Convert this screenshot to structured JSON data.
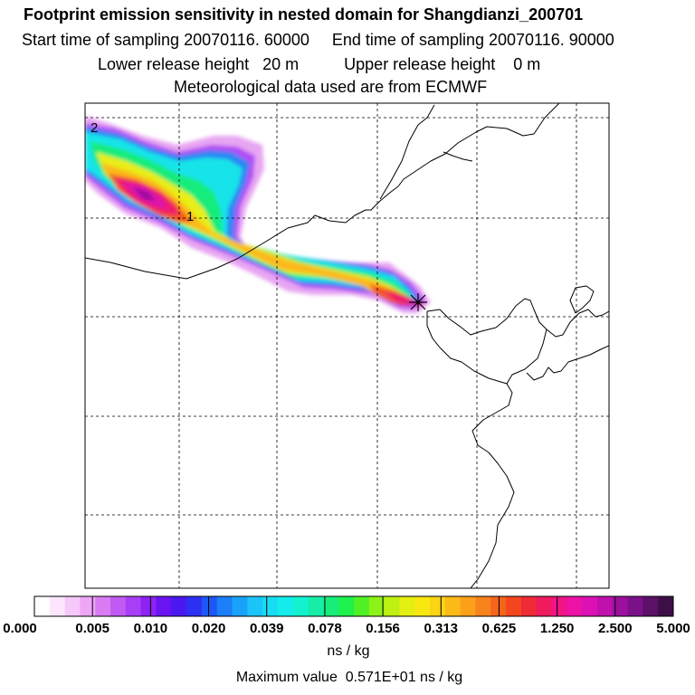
{
  "header": {
    "title": "Footprint emission sensitivity in nested domain for Shangdianzi_200701",
    "start_label": "Start time of sampling 20070116. 60000",
    "end_label": "End time of sampling 20070116. 90000",
    "lower_release_label": "Lower release height   20 m",
    "upper_release_label": "Upper release height    0 m",
    "met_label": "Meteorological data used are from ECMWF"
  },
  "map": {
    "plume_labels": [
      "2",
      "1"
    ],
    "receptor_marker": "star"
  },
  "colorbar": {
    "tick_labels": [
      "0.000",
      "0.005",
      "0.010",
      "0.020",
      "0.039",
      "0.078",
      "0.156",
      "0.313",
      "0.625",
      "1.250",
      "2.500",
      "5.000"
    ],
    "units": "ns / kg",
    "colors": [
      "#ffffff",
      "#fde6fd",
      "#f5c8fa",
      "#eea6f6",
      "#d97cf3",
      "#c159f4",
      "#a83ef6",
      "#8c22f4",
      "#6a14f2",
      "#4a18f0",
      "#2c30f2",
      "#1c58f6",
      "#1c7ef8",
      "#1aa2fa",
      "#1cc4fa",
      "#18dcf4",
      "#14ecec",
      "#12f2d0",
      "#16eea8",
      "#18ec7a",
      "#1ef04c",
      "#50f024",
      "#8cf218",
      "#bef012",
      "#e4ee10",
      "#f8e812",
      "#fcd416",
      "#fcba18",
      "#fca01a",
      "#f8821c",
      "#f4641c",
      "#f4461e",
      "#f02a36",
      "#f01a5e",
      "#f01486",
      "#ec12a6",
      "#dc10b4",
      "#c010ae",
      "#9c10a0",
      "#7c1088",
      "#5c1068",
      "#3c1046"
    ]
  },
  "maximum_label": "Maximum value  0.571E+01 ns / kg"
}
